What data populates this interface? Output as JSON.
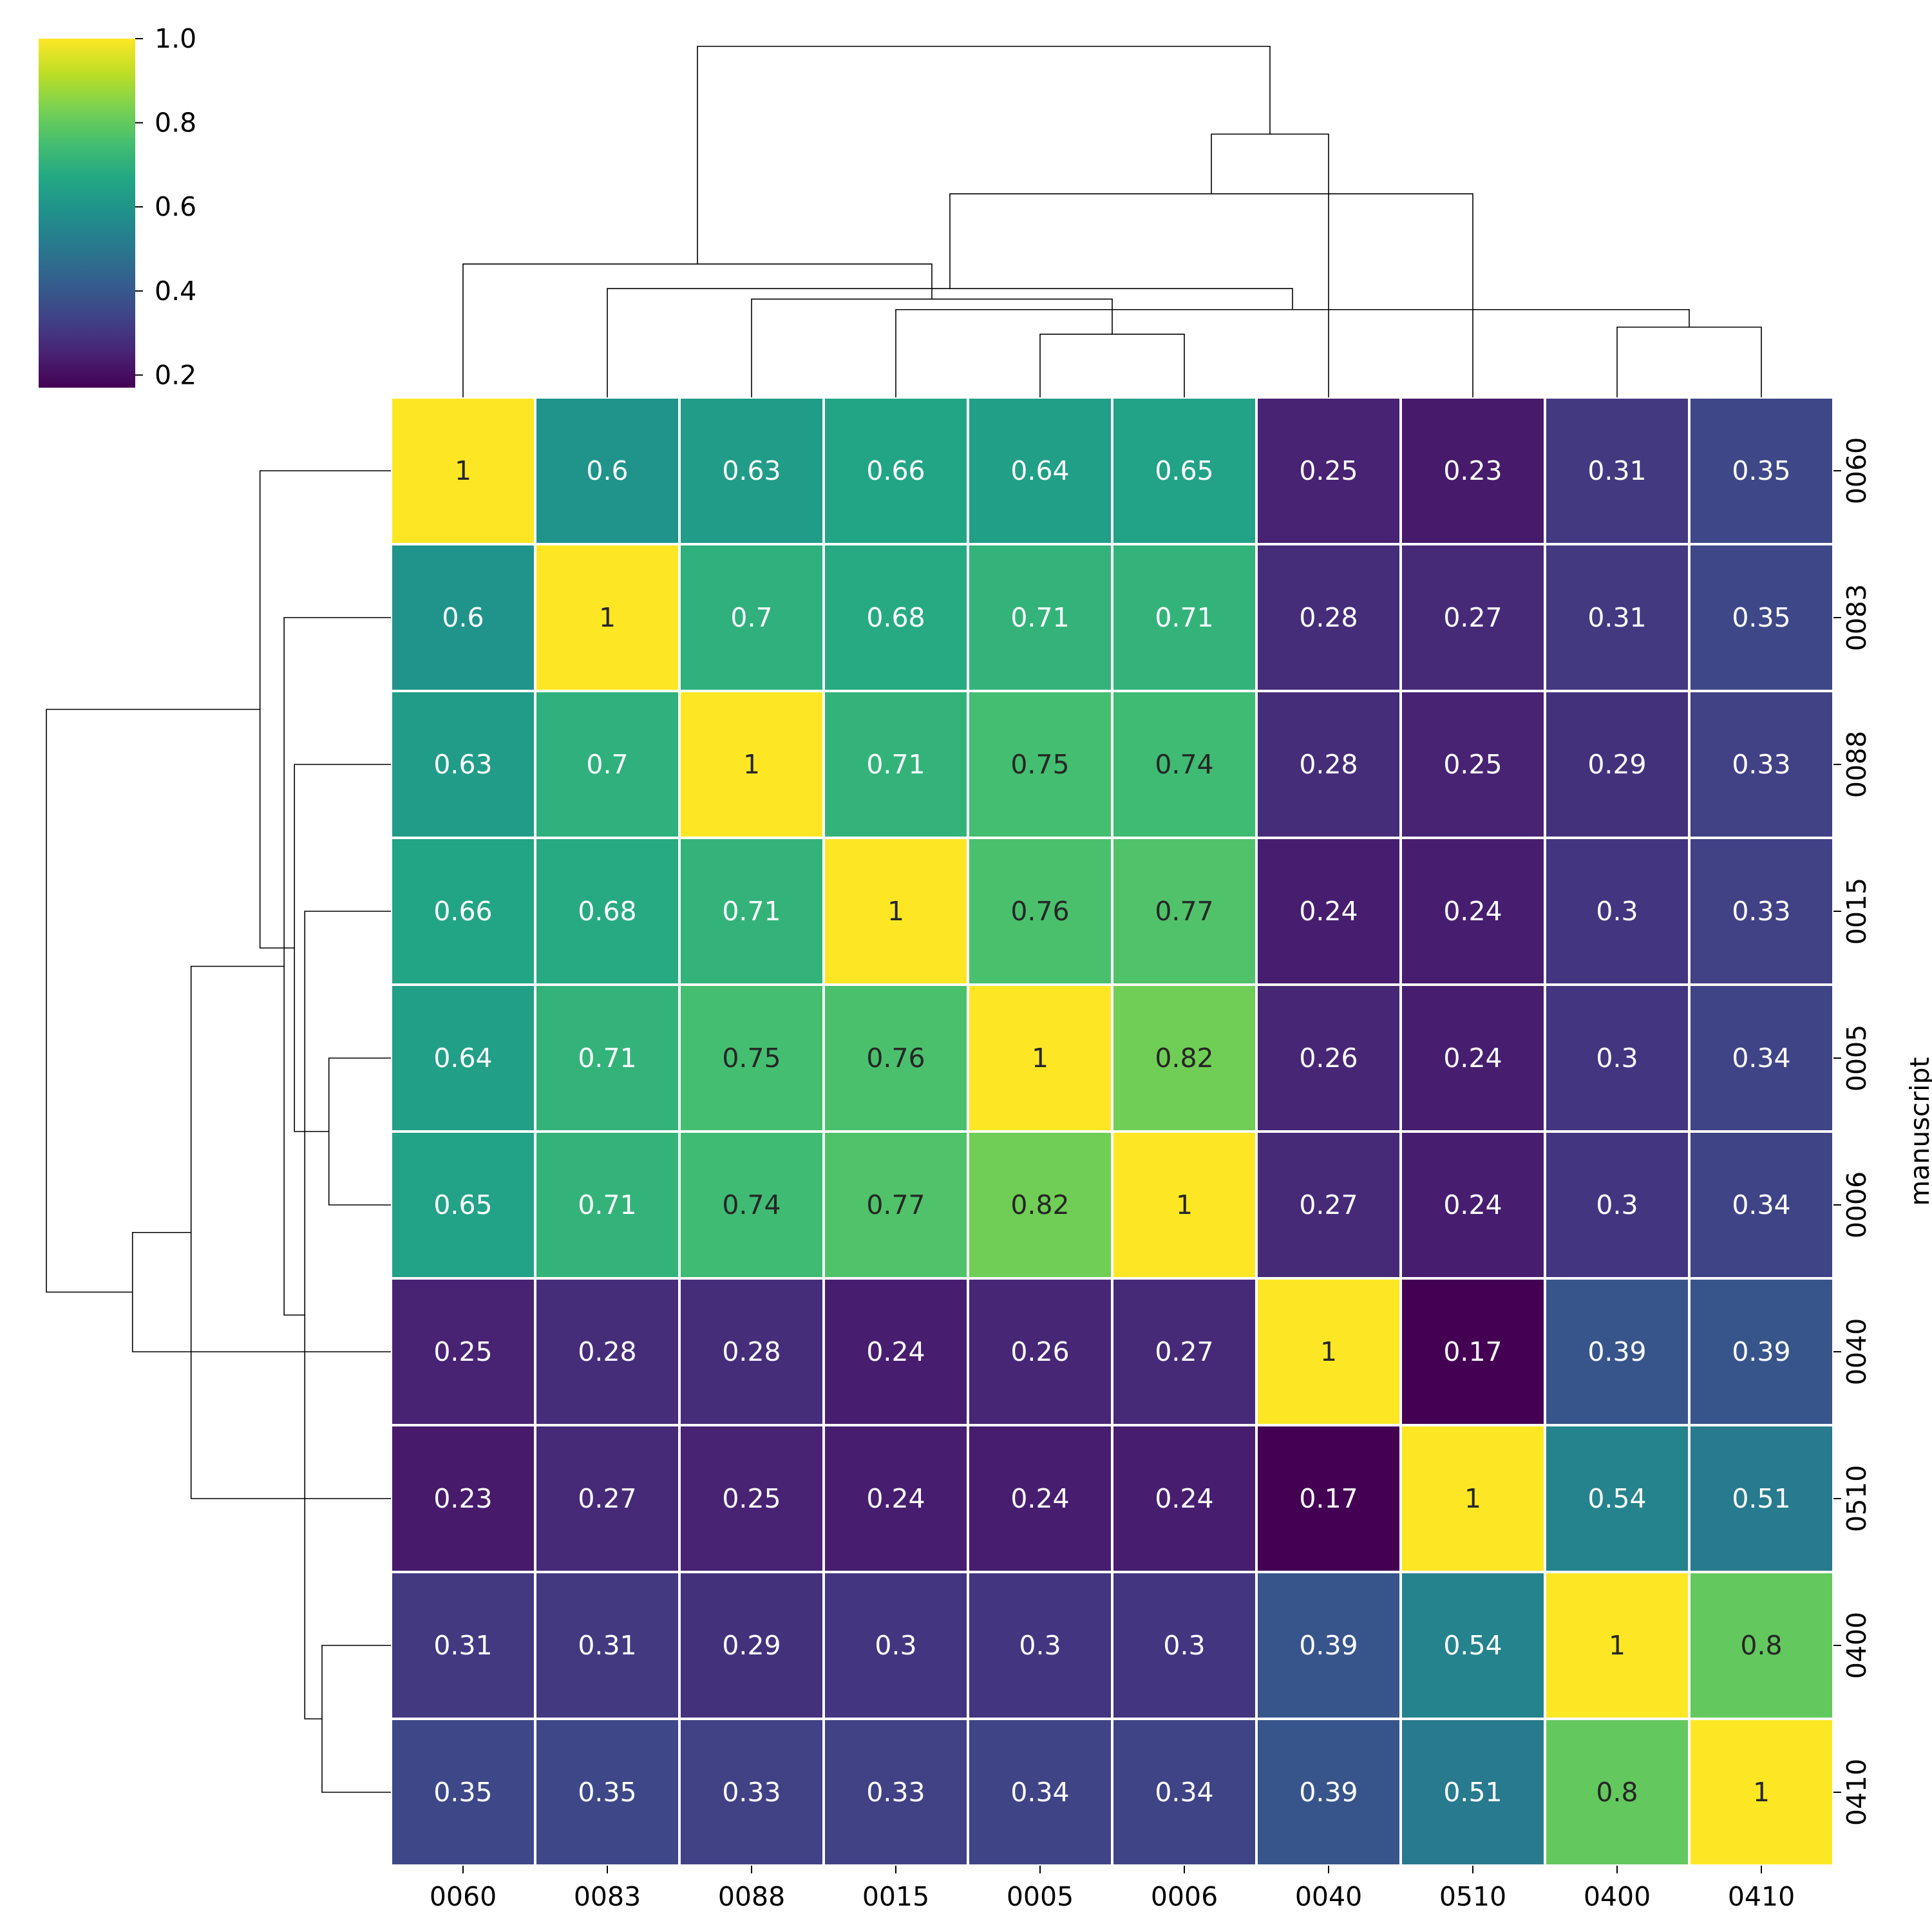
{
  "chart_data": {
    "type": "heatmap",
    "colormap": "viridis",
    "color_range": [
      0.17,
      1.0
    ],
    "colorbar_ticks": [
      "0.2",
      "0.4",
      "0.6",
      "0.8",
      "1.0"
    ],
    "colorbar_tick_values": [
      0.2,
      0.4,
      0.6,
      0.8,
      1.0
    ],
    "ylabel": "manuscript",
    "xlabel": "",
    "x_labels": [
      "0060",
      "0083",
      "0088",
      "0015",
      "0005",
      "0006",
      "0040",
      "0510",
      "0400",
      "0410"
    ],
    "y_labels": [
      "0060",
      "0083",
      "0088",
      "0015",
      "0005",
      "0006",
      "0040",
      "0510",
      "0400",
      "0410"
    ],
    "values": [
      [
        1,
        0.6,
        0.63,
        0.66,
        0.64,
        0.65,
        0.25,
        0.23,
        0.31,
        0.35
      ],
      [
        0.6,
        1,
        0.7,
        0.68,
        0.71,
        0.71,
        0.28,
        0.27,
        0.31,
        0.35
      ],
      [
        0.63,
        0.7,
        1,
        0.71,
        0.75,
        0.74,
        0.28,
        0.25,
        0.29,
        0.33
      ],
      [
        0.66,
        0.68,
        0.71,
        1,
        0.76,
        0.77,
        0.24,
        0.24,
        0.3,
        0.33
      ],
      [
        0.64,
        0.71,
        0.75,
        0.76,
        1,
        0.82,
        0.26,
        0.24,
        0.3,
        0.34
      ],
      [
        0.65,
        0.71,
        0.74,
        0.77,
        0.82,
        1,
        0.27,
        0.24,
        0.3,
        0.34
      ],
      [
        0.25,
        0.28,
        0.28,
        0.24,
        0.26,
        0.27,
        1,
        0.17,
        0.39,
        0.39
      ],
      [
        0.23,
        0.27,
        0.25,
        0.24,
        0.24,
        0.24,
        0.17,
        1,
        0.54,
        0.51
      ],
      [
        0.31,
        0.31,
        0.29,
        0.3,
        0.3,
        0.3,
        0.39,
        0.54,
        1,
        0.8
      ],
      [
        0.35,
        0.35,
        0.33,
        0.33,
        0.34,
        0.34,
        0.39,
        0.51,
        0.8,
        1
      ]
    ],
    "dendrogram": {
      "description_free": true,
      "merges": [
        [
          8,
          9
        ],
        [
          4,
          5
        ],
        [
          3,
          10
        ],
        [
          2,
          11
        ],
        [
          1,
          12
        ],
        [
          0,
          13
        ],
        [
          7,
          14
        ],
        [
          6,
          16
        ],
        [
          15,
          17
        ]
      ],
      "heights": [
        0.2,
        0.18,
        0.25,
        0.28,
        0.31,
        0.38,
        0.58,
        0.75,
        1.0
      ]
    },
    "annotations": "cell values printed in each cell",
    "grid": false
  }
}
